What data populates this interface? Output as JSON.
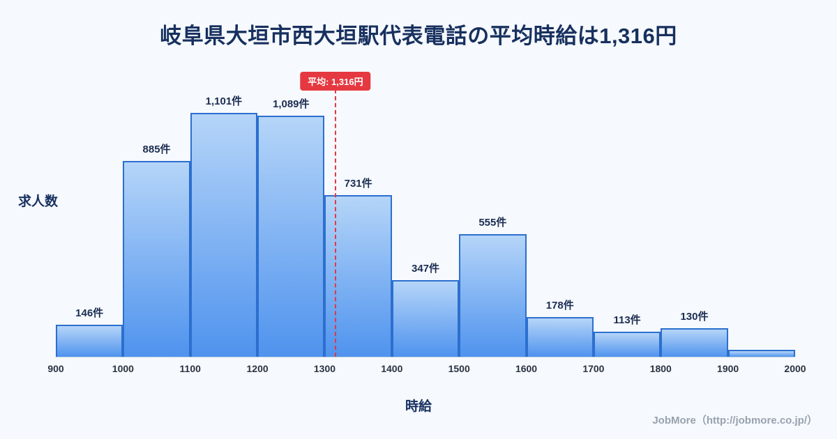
{
  "title": "岐阜県大垣市西大垣駅代表電話の平均時給は1,316円",
  "footer": "JobMore（http://jobmore.co.jp/）",
  "chart_data": {
    "type": "bar",
    "subtype": "histogram",
    "title": "岐阜県大垣市西大垣駅代表電話の平均時給は1,316円",
    "xlabel": "時給",
    "ylabel": "求人数",
    "bin_edges": [
      900,
      1000,
      1100,
      1200,
      1300,
      1400,
      1500,
      1600,
      1700,
      1800,
      1900,
      2000
    ],
    "categories": [
      "900-1000",
      "1000-1100",
      "1100-1200",
      "1200-1300",
      "1300-1400",
      "1400-1500",
      "1500-1600",
      "1600-1700",
      "1700-1800",
      "1800-1900",
      "1900-2000"
    ],
    "values": [
      146,
      885,
      1101,
      1089,
      731,
      347,
      555,
      178,
      113,
      130,
      30
    ],
    "labels": [
      "146件",
      "885件",
      "1,101件",
      "1,089件",
      "731件",
      "347件",
      "555件",
      "178件",
      "113件",
      "130件",
      ""
    ],
    "x_ticks": [
      "900",
      "1000",
      "1100",
      "1200",
      "1300",
      "1400",
      "1500",
      "1600",
      "1700",
      "1800",
      "1900",
      "2000"
    ],
    "average": 1316,
    "average_label": "平均: 1,316円",
    "ylim": [
      0,
      1150
    ],
    "grid": false,
    "legend": "none",
    "colors": {
      "background": "#f6f9fd",
      "title": "#17305f",
      "bar_top": "#b5d5f8",
      "bar_bottom": "#4f93ee",
      "bar_border": "#2c6fcf",
      "accent": "#e53840",
      "footer": "#98a2ae"
    }
  }
}
